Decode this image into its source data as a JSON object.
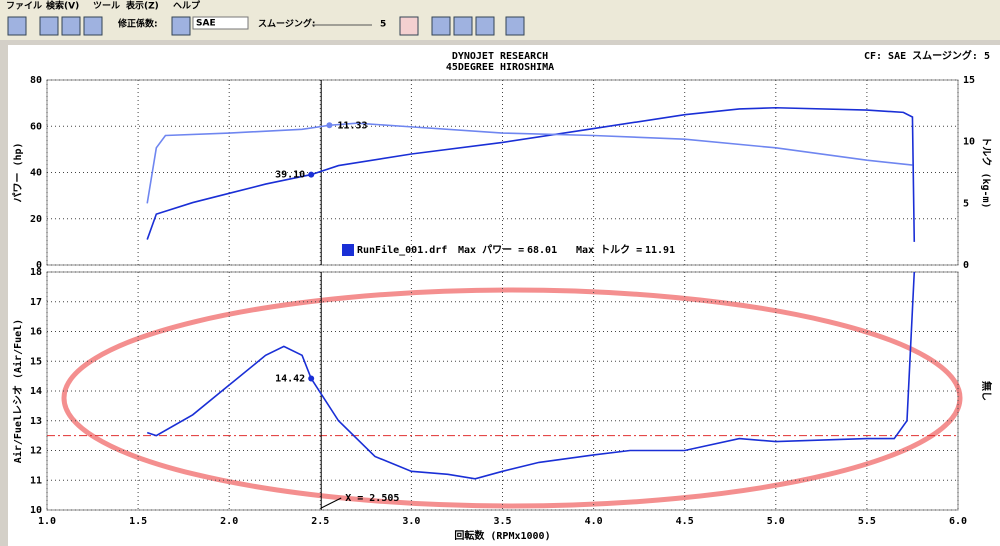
{
  "toolbar": {
    "menu": [
      "ファイル",
      "検索(V)",
      "ツール",
      "表示(Z)",
      "ヘルプ"
    ],
    "correction_label": "修正係数:",
    "correction_value": "SAE",
    "smoothing_label": "スムージング:",
    "smoothing_value": "5"
  },
  "header": {
    "line1": "DYNOJET RESEARCH",
    "line2": "45DEGREE HIROSHIMA",
    "cf": "CF: SAE  スムージング: 5"
  },
  "chart_data": [
    {
      "type": "line",
      "ylabel": "パワー (hp)",
      "y2label": "トルク (kg-m)",
      "xlim": [
        1,
        6
      ],
      "xticks": [
        1,
        1.5,
        2,
        2.5,
        3,
        3.5,
        4,
        4.5,
        5,
        5.5,
        6
      ],
      "ylim": [
        0,
        80
      ],
      "yticks": [
        0,
        20,
        40,
        60,
        80
      ],
      "y2lim": [
        0,
        15
      ],
      "y2ticks": [
        0,
        5,
        10,
        15
      ],
      "grid": true,
      "cursor": {
        "x": 2.505
      },
      "series": [
        {
          "name": "パワー",
          "color": "#1a2fd6",
          "x": [
            1.55,
            1.6,
            1.8,
            2.0,
            2.2,
            2.45,
            2.6,
            3.0,
            3.5,
            4.0,
            4.5,
            4.8,
            5.0,
            5.5,
            5.7,
            5.75,
            5.76
          ],
          "values": [
            11,
            22,
            27,
            31,
            35,
            39.1,
            43,
            48,
            53,
            59,
            65,
            67.5,
            68,
            67,
            66,
            64,
            10
          ],
          "readout": {
            "x": 2.45,
            "y": 39.1,
            "label": "39.10"
          }
        },
        {
          "name": "トルク",
          "color": "#6f86f0",
          "axis": "y2",
          "x": [
            1.55,
            1.6,
            1.65,
            2.0,
            2.4,
            2.55,
            2.7,
            3.0,
            3.5,
            4.0,
            4.5,
            5.0,
            5.5,
            5.75
          ],
          "values": [
            5,
            9.5,
            10.5,
            10.7,
            11,
            11.33,
            11.5,
            11.2,
            10.7,
            10.5,
            10.2,
            9.5,
            8.5,
            8.1
          ],
          "readout": {
            "x": 2.55,
            "y": 11.33,
            "label": "11.33"
          }
        }
      ],
      "legend": {
        "file": "RunFile_001.drf",
        "items": [
          {
            "label": "Max パワー =",
            "value": 68.01
          },
          {
            "label": "Max トルク =",
            "value": 11.91
          }
        ]
      }
    },
    {
      "type": "line",
      "xlabel": "回転数 (RPMx1000)",
      "ylabel": "Air/Fuelレシオ (Air/Fuel)",
      "y2label": "無し",
      "xlim": [
        1,
        6
      ],
      "xticks": [
        {
          "value": 1,
          "label": "1.0"
        },
        {
          "value": 1.5,
          "label": "1.5"
        },
        {
          "value": 2,
          "label": "2.0"
        },
        {
          "value": 2.5,
          "label": "2.5"
        },
        {
          "value": 3,
          "label": "3.0"
        },
        {
          "value": 3.5,
          "label": "3.5"
        },
        {
          "value": 4,
          "label": "4.0"
        },
        {
          "value": 4.5,
          "label": "4.5"
        },
        {
          "value": 5,
          "label": "5.0"
        },
        {
          "value": 5.5,
          "label": "5.5"
        },
        {
          "value": 6,
          "label": "6.0"
        }
      ],
      "ylim": [
        10,
        18
      ],
      "yticks": [
        10,
        11,
        12,
        13,
        14,
        15,
        16,
        17,
        18
      ],
      "grid": true,
      "reference_line": {
        "y": 12.5,
        "color": "#e03030"
      },
      "cursor": {
        "x": 2.505,
        "label": "X = 2.505"
      },
      "series": [
        {
          "name": "Air/Fuel",
          "color": "#1a2fd6",
          "x": [
            1.55,
            1.6,
            1.8,
            2.0,
            2.2,
            2.3,
            2.4,
            2.45,
            2.6,
            2.8,
            3.0,
            3.2,
            3.35,
            3.5,
            3.7,
            4.0,
            4.2,
            4.5,
            4.8,
            5.0,
            5.5,
            5.65,
            5.72,
            5.76
          ],
          "values": [
            12.6,
            12.5,
            13.2,
            14.2,
            15.2,
            15.5,
            15.2,
            14.42,
            13.0,
            11.8,
            11.3,
            11.2,
            11.05,
            11.3,
            11.6,
            11.85,
            12.0,
            12.0,
            12.4,
            12.3,
            12.4,
            12.4,
            13,
            18
          ],
          "readout": {
            "x": 2.45,
            "y": 14.42,
            "label": "14.42"
          }
        }
      ]
    }
  ]
}
